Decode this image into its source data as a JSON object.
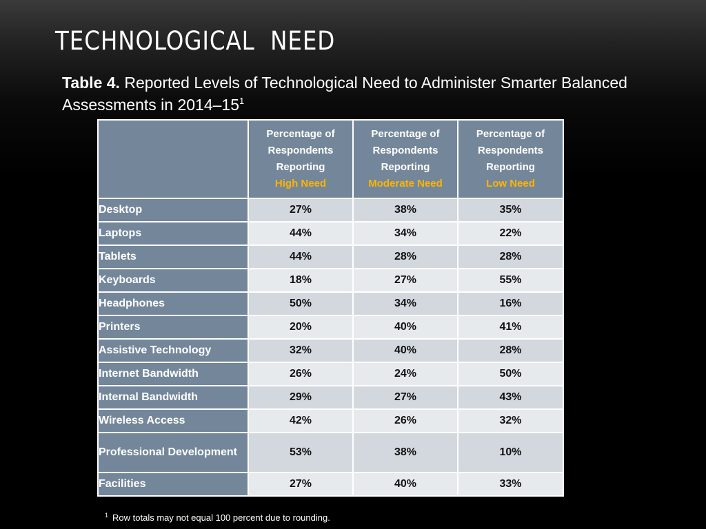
{
  "slide": {
    "title": "Technological  Need"
  },
  "caption": {
    "lead": "Table 4.",
    "text": "Reported Levels of Technological Need to Administer Smarter Balanced Assessments in 2014–15",
    "footnote_marker": "1"
  },
  "table": {
    "columns": [
      {
        "line1": "Percentage of",
        "line2": "Respondents",
        "line3": "Reporting",
        "need": "High Need"
      },
      {
        "line1": "Percentage of",
        "line2": "Respondents",
        "line3": "Reporting",
        "need": "Moderate Need"
      },
      {
        "line1": "Percentage of",
        "line2": "Respondents",
        "line3": "Reporting",
        "need": "Low Need"
      }
    ],
    "rows": [
      {
        "label": "Desktop",
        "high": "27%",
        "moderate": "38%",
        "low": "35%"
      },
      {
        "label": "Laptops",
        "high": "44%",
        "moderate": "34%",
        "low": "22%"
      },
      {
        "label": "Tablets",
        "high": "44%",
        "moderate": "28%",
        "low": "28%"
      },
      {
        "label": "Keyboards",
        "high": "18%",
        "moderate": "27%",
        "low": "55%"
      },
      {
        "label": "Headphones",
        "high": "50%",
        "moderate": "34%",
        "low": "16%"
      },
      {
        "label": "Printers",
        "high": "20%",
        "moderate": "40%",
        "low": "41%"
      },
      {
        "label": "Assistive Technology",
        "high": "32%",
        "moderate": "40%",
        "low": "28%"
      },
      {
        "label": "Internet Bandwidth",
        "high": "26%",
        "moderate": "24%",
        "low": "50%"
      },
      {
        "label": "Internal Bandwidth",
        "high": "29%",
        "moderate": "27%",
        "low": "43%"
      },
      {
        "label": "Wireless Access",
        "high": "42%",
        "moderate": "26%",
        "low": "32%"
      },
      {
        "label": "Professional Development",
        "high": "53%",
        "moderate": "38%",
        "low": "10%"
      },
      {
        "label": "Facilities",
        "high": "27%",
        "moderate": "40%",
        "low": "33%"
      }
    ]
  },
  "footnote": {
    "marker": "1",
    "text": "Row totals may not equal 100 percent due to rounding."
  },
  "colors": {
    "header_bg": "#74879a",
    "need_accent": "#ffb400",
    "cell_odd": "#d3d8de",
    "cell_even": "#e7eaed"
  }
}
